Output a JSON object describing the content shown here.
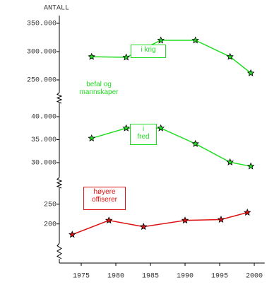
{
  "chart_data": [
    {
      "type": "line",
      "y_label": "ANTALL",
      "ylim": [
        240000,
        360000
      ],
      "yticks": [
        {
          "value": 350000,
          "label": "350.000"
        },
        {
          "value": 300000,
          "label": "300.000"
        },
        {
          "value": 250000,
          "label": "250.000"
        }
      ],
      "series": [
        {
          "name": "i krig",
          "color": "#22dd22",
          "x": [
            1976.5,
            1981.5,
            1986.5,
            1991.5,
            1996.5,
            1999.5
          ],
          "values": [
            291000,
            290000,
            320000,
            320000,
            291000,
            262000
          ]
        }
      ],
      "annotations": [
        "befal og\nmannskaper"
      ]
    },
    {
      "type": "line",
      "ylim": [
        28000,
        42000
      ],
      "yticks": [
        {
          "value": 40000,
          "label": "40.000"
        },
        {
          "value": 35000,
          "label": "35.000"
        },
        {
          "value": 30000,
          "label": "30.000"
        }
      ],
      "series": [
        {
          "name": "i\nfred",
          "color": "#22dd22",
          "x": [
            1976.5,
            1981.5,
            1986.5,
            1991.5,
            1996.5,
            1999.5
          ],
          "values": [
            35300,
            37500,
            37500,
            34100,
            30100,
            29200
          ]
        }
      ]
    },
    {
      "type": "line",
      "ylim": [
        160,
        280
      ],
      "yticks": [
        250,
        200
      ],
      "xlim": [
        1972,
        2001.5
      ],
      "xticks": [
        1975,
        1980,
        1985,
        1990,
        1995,
        2000
      ],
      "series": [
        {
          "name": "høyere\noffiserer",
          "color": "#dd1111",
          "x": [
            1973.7,
            1979,
            1984,
            1990,
            1995.2,
            1999
          ],
          "values": [
            173,
            209,
            193,
            209,
            211,
            229
          ]
        }
      ]
    }
  ]
}
